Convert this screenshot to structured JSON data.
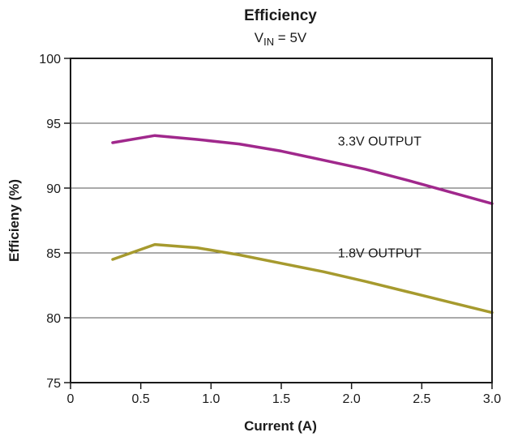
{
  "chart_data": {
    "type": "line",
    "title": "Efficiency",
    "subtitle": {
      "main": "V",
      "sub": "IN",
      "rest": " = 5V"
    },
    "xlabel": "Current (A)",
    "ylabel": "Efficieny (%)",
    "xlim": [
      0,
      3.0
    ],
    "ylim": [
      75,
      100
    ],
    "xticks": [
      0,
      0.5,
      1.0,
      1.5,
      2.0,
      2.5,
      3.0
    ],
    "xtick_labels": [
      "0",
      "0.5",
      "1.0",
      "1.5",
      "2.0",
      "2.5",
      "3.0"
    ],
    "yticks": [
      75,
      80,
      85,
      90,
      95,
      100
    ],
    "ytick_labels": [
      "75",
      "80",
      "85",
      "90",
      "95",
      "100"
    ],
    "grid": "horizontal",
    "series": [
      {
        "name": "3.3V OUTPUT",
        "color": "#a0288c",
        "x": [
          0.3,
          0.6,
          0.9,
          1.2,
          1.5,
          1.8,
          2.1,
          2.4,
          2.7,
          3.0
        ],
        "y": [
          93.5,
          94.05,
          93.75,
          93.4,
          92.85,
          92.15,
          91.45,
          90.6,
          89.7,
          88.8
        ]
      },
      {
        "name": "1.8V OUTPUT",
        "color": "#a69a2e",
        "x": [
          0.3,
          0.6,
          0.9,
          1.2,
          1.5,
          1.8,
          2.1,
          2.4,
          2.7,
          3.0
        ],
        "y": [
          84.5,
          85.65,
          85.4,
          84.85,
          84.2,
          83.55,
          82.8,
          82.0,
          81.2,
          80.4
        ]
      }
    ]
  }
}
